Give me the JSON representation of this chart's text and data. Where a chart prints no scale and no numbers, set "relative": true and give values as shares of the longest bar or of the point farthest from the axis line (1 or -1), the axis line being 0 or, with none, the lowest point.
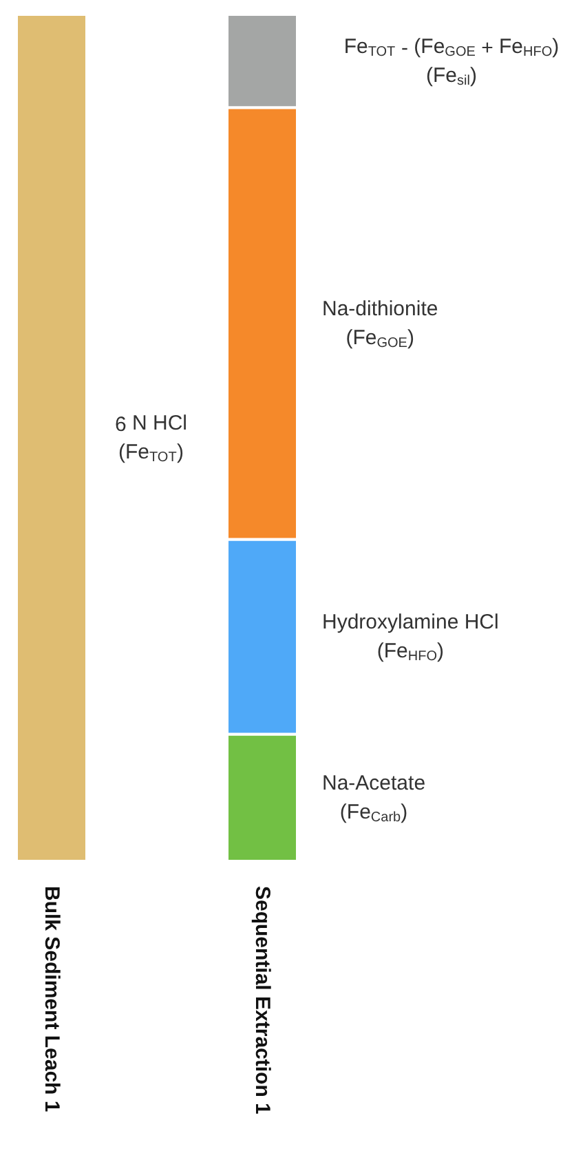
{
  "chart_data": {
    "type": "bar",
    "stacked": true,
    "relative": true,
    "legend": false,
    "grid": false,
    "categories": [
      "Bulk Sediment Leach 1",
      "Sequential Extraction 1"
    ],
    "series": [
      {
        "name": "6 N HCl\n(Fe$_{TOT}$)",
        "color": "#dfbd72",
        "values": [
          1,
          null
        ]
      },
      {
        "name": "Na-Acetate\n(Fe$_{Carb}$)",
        "color": "#72c044",
        "values": [
          null,
          0.15
        ]
      },
      {
        "name": "Hydroxylamine HCl\n(Fe$_{HFO}$)",
        "color": "#4fa9f8",
        "values": [
          null,
          0.23
        ]
      },
      {
        "name": "Na-dithionite\n(Fe$_{GOE}$)",
        "color": "#f5892a",
        "values": [
          null,
          0.51
        ]
      },
      {
        "name": "Fe$_{TOT}$ - (Fe$_{GOE}$ + Fe$_{HFO}$)\n(Fe$_{sil}$)",
        "color": "#a4a6a5",
        "values": [
          null,
          0.11
        ]
      }
    ]
  }
}
